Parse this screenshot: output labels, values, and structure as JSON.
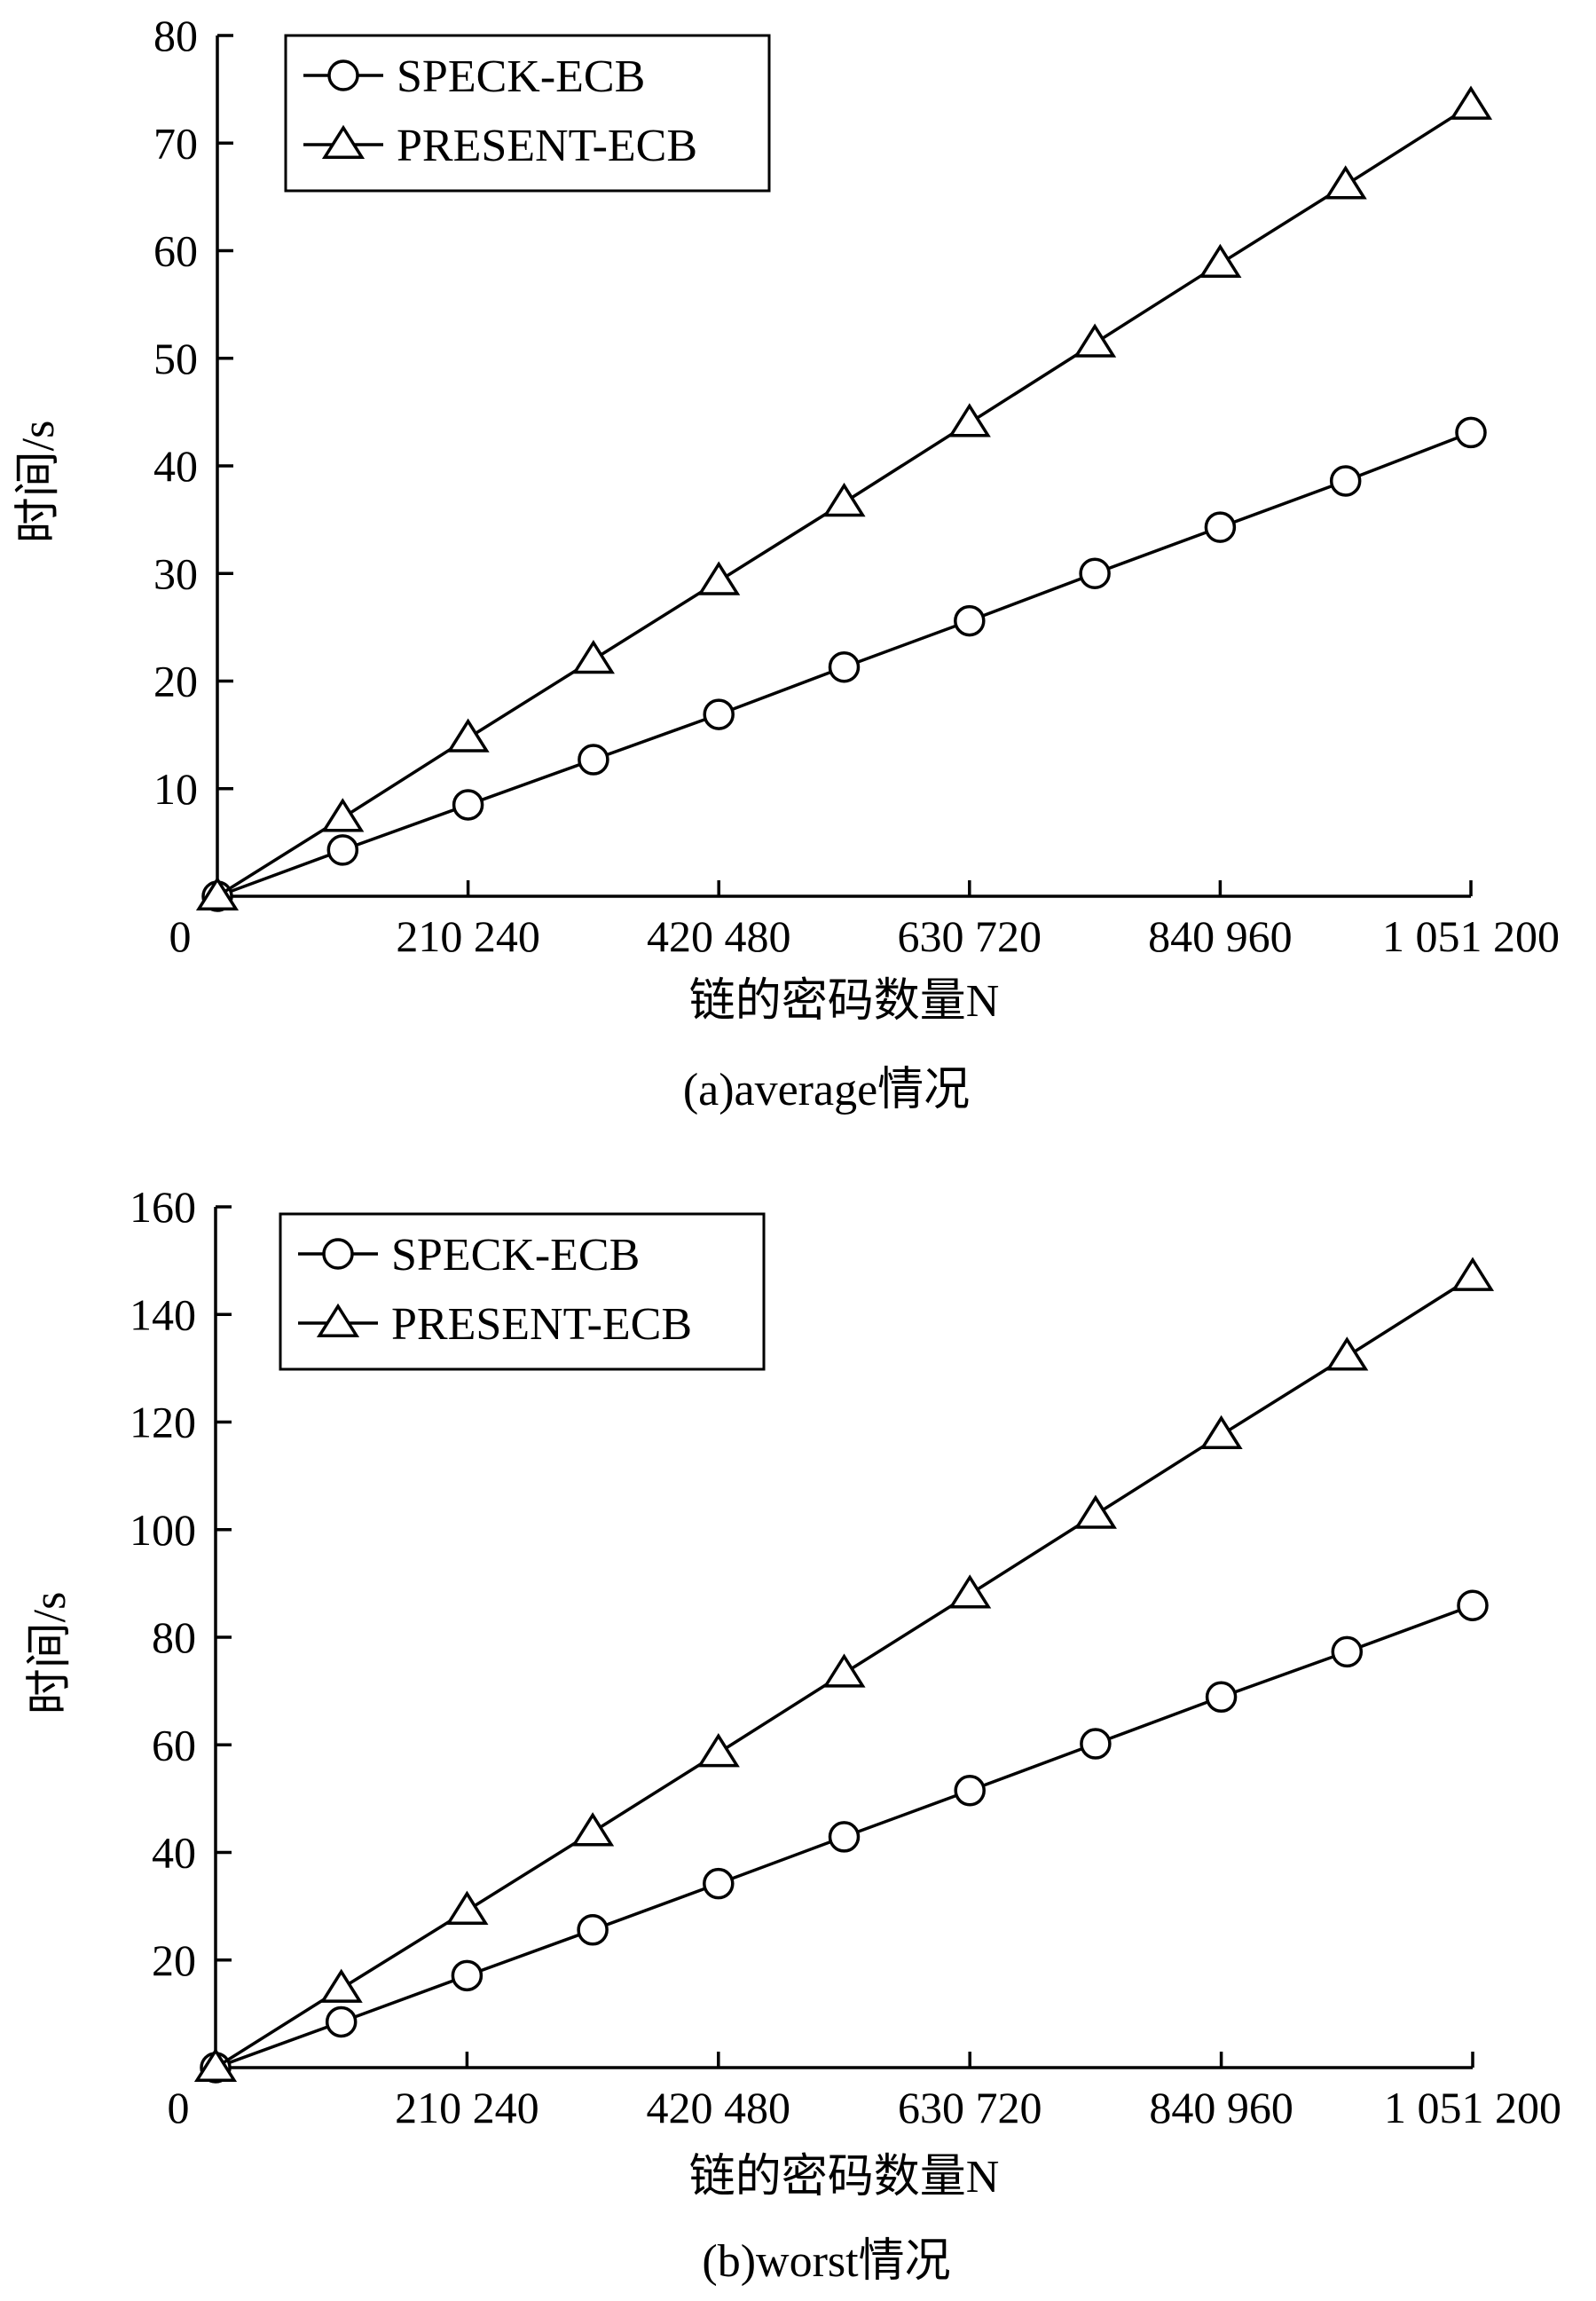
{
  "chart_data": [
    {
      "type": "line",
      "title": "",
      "caption": "(a)average情况",
      "xlabel": "链的密码数量N",
      "ylabel": "时间/s",
      "xlim": [
        0,
        1051200
      ],
      "ylim": [
        0,
        80
      ],
      "x_ticks": [
        {
          "value": 210240,
          "label": "210 240"
        },
        {
          "value": 420480,
          "label": "420 480"
        },
        {
          "value": 630720,
          "label": "630 720"
        },
        {
          "value": 840960,
          "label": "840 960"
        },
        {
          "value": 1051200,
          "label": "1 051 200"
        }
      ],
      "y_ticks": [
        {
          "value": 0,
          "label": "0"
        },
        {
          "value": 10,
          "label": "10"
        },
        {
          "value": 20,
          "label": "20"
        },
        {
          "value": 30,
          "label": "30"
        },
        {
          "value": 40,
          "label": "40"
        },
        {
          "value": 50,
          "label": "50"
        },
        {
          "value": 60,
          "label": "60"
        },
        {
          "value": 70,
          "label": "70"
        },
        {
          "value": 80,
          "label": "80"
        }
      ],
      "legend_position": "top-left",
      "grid": false,
      "x": [
        0,
        105120,
        210240,
        315360,
        420480,
        525600,
        630720,
        735840,
        840960,
        946080,
        1051200
      ],
      "series": [
        {
          "name": "SPECK-ECB",
          "marker": "circle",
          "values": [
            0,
            4.3,
            8.5,
            12.7,
            16.9,
            21.3,
            25.6,
            30.0,
            34.3,
            38.6,
            43.1
          ]
        },
        {
          "name": "PRESENT-ECB",
          "marker": "triangle",
          "values": [
            0,
            7.3,
            14.7,
            22.0,
            29.3,
            36.6,
            44.0,
            51.4,
            58.8,
            66.1,
            73.5
          ]
        }
      ]
    },
    {
      "type": "line",
      "title": "",
      "caption": "(b)worst情况",
      "xlabel": "链的密码数量N",
      "ylabel": "时间/s",
      "xlim": [
        0,
        1051200
      ],
      "ylim": [
        0,
        160
      ],
      "x_ticks": [
        {
          "value": 210240,
          "label": "210 240"
        },
        {
          "value": 420480,
          "label": "420 480"
        },
        {
          "value": 630720,
          "label": "630 720"
        },
        {
          "value": 840960,
          "label": "840 960"
        },
        {
          "value": 1051200,
          "label": "1 051 200"
        }
      ],
      "y_ticks": [
        {
          "value": 0,
          "label": "0"
        },
        {
          "value": 20,
          "label": "20"
        },
        {
          "value": 40,
          "label": "40"
        },
        {
          "value": 60,
          "label": "60"
        },
        {
          "value": 80,
          "label": "80"
        },
        {
          "value": 100,
          "label": "100"
        },
        {
          "value": 120,
          "label": "120"
        },
        {
          "value": 140,
          "label": "140"
        },
        {
          "value": 160,
          "label": "160"
        }
      ],
      "legend_position": "top-left",
      "grid": false,
      "x": [
        0,
        105120,
        210240,
        315360,
        420480,
        525600,
        630720,
        735840,
        840960,
        946080,
        1051200
      ],
      "series": [
        {
          "name": "SPECK-ECB",
          "marker": "circle",
          "values": [
            0,
            8.5,
            17.1,
            25.6,
            34.2,
            42.9,
            51.5,
            60.2,
            68.9,
            77.3,
            85.9
          ]
        },
        {
          "name": "PRESENT-ECB",
          "marker": "triangle",
          "values": [
            0,
            14.7,
            29.2,
            43.8,
            58.5,
            73.3,
            88.0,
            102.8,
            117.6,
            132.2,
            147.0
          ]
        }
      ]
    }
  ]
}
